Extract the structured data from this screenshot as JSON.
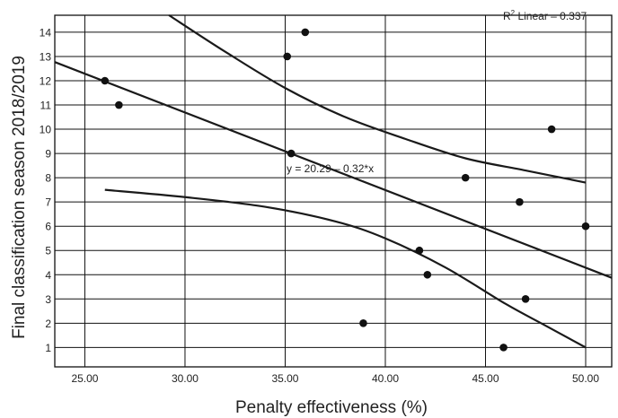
{
  "chart_data": {
    "type": "scatter",
    "xlabel": "Penalty effectiveness (%)",
    "ylabel": "Final classification season 2018/2019",
    "xlim": [
      23.5,
      51.3
    ],
    "ylim": [
      0.2,
      14.7
    ],
    "x_ticks": [
      "25.00",
      "30.00",
      "35.00",
      "40.00",
      "45.00",
      "50.00"
    ],
    "y_ticks": [
      "1",
      "2",
      "3",
      "4",
      "5",
      "6",
      "7",
      "8",
      "9",
      "10",
      "11",
      "12",
      "13",
      "14"
    ],
    "grid": true,
    "points": [
      {
        "x": 26.0,
        "y": 12
      },
      {
        "x": 26.7,
        "y": 11
      },
      {
        "x": 35.1,
        "y": 13
      },
      {
        "x": 36.0,
        "y": 14
      },
      {
        "x": 35.3,
        "y": 9
      },
      {
        "x": 38.9,
        "y": 2
      },
      {
        "x": 41.7,
        "y": 5
      },
      {
        "x": 42.1,
        "y": 4
      },
      {
        "x": 44.0,
        "y": 8
      },
      {
        "x": 45.9,
        "y": 1
      },
      {
        "x": 46.7,
        "y": 7
      },
      {
        "x": 47.0,
        "y": 3
      },
      {
        "x": 48.3,
        "y": 10
      },
      {
        "x": 50.0,
        "y": 6
      }
    ],
    "regression": {
      "intercept": 20.29,
      "slope": -0.32,
      "x_range": [
        23.5,
        51.3
      ]
    },
    "confidence_upper": [
      [
        29.2,
        14.7
      ],
      [
        32.0,
        13.2
      ],
      [
        35.0,
        11.7
      ],
      [
        38.0,
        10.5
      ],
      [
        41.0,
        9.6
      ],
      [
        44.0,
        8.8
      ],
      [
        47.0,
        8.3
      ],
      [
        50.0,
        7.8
      ]
    ],
    "confidence_lower": [
      [
        26.0,
        7.5
      ],
      [
        30.0,
        7.2
      ],
      [
        34.0,
        6.8
      ],
      [
        37.5,
        6.2
      ],
      [
        40.0,
        5.5
      ],
      [
        43.0,
        4.3
      ],
      [
        46.0,
        2.8
      ],
      [
        48.0,
        1.9
      ],
      [
        50.0,
        1.0
      ]
    ],
    "equation_label": "y = 20.29 – 0.32*x",
    "r2_label_prefix": "R",
    "r2_label_sup": "2",
    "r2_label_suffix": " Linear – 0.337"
  }
}
